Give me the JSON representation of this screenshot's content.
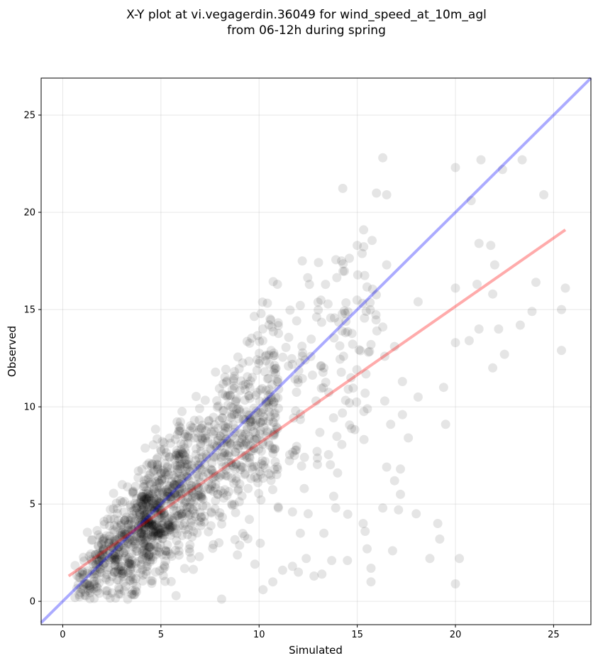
{
  "chart_data": {
    "type": "scatter",
    "title_line1": "X-Y plot at vi.vegagerdin.36049 for wind_speed_at_10m_agl",
    "title_line2": "from 06-12h during spring",
    "xlabel": "Simulated",
    "ylabel": "Observed",
    "xlim": [
      -1.1,
      26.9
    ],
    "ylim": [
      -1.2,
      26.9
    ],
    "xticks": [
      "0",
      "5",
      "10",
      "15",
      "20",
      "25"
    ],
    "yticks": [
      "0",
      "5",
      "10",
      "15",
      "20",
      "25"
    ],
    "grid": true,
    "point_color": "#000000",
    "point_alpha": 0.1,
    "identity_line": {
      "color": "#0000ff",
      "alpha": 0.33,
      "slope": 1,
      "intercept": 0
    },
    "regression_line": {
      "color": "#ff0000",
      "alpha": 0.33,
      "x": [
        0.3,
        25.6
      ],
      "y": [
        1.3,
        19.1
      ]
    },
    "cluster_point_count": 1500,
    "outlier_points": [
      [
        16.3,
        22.8
      ],
      [
        16.5,
        20.9
      ],
      [
        20.0,
        22.3
      ],
      [
        20.8,
        20.6
      ],
      [
        21.3,
        22.7
      ],
      [
        22.4,
        22.2
      ],
      [
        23.4,
        22.7
      ],
      [
        24.5,
        20.9
      ],
      [
        21.2,
        18.4
      ],
      [
        21.8,
        18.3
      ],
      [
        22.0,
        17.3
      ],
      [
        21.9,
        15.8
      ],
      [
        20.0,
        16.1
      ],
      [
        21.1,
        16.3
      ],
      [
        24.1,
        16.4
      ],
      [
        25.6,
        16.1
      ],
      [
        23.9,
        14.9
      ],
      [
        25.4,
        15.0
      ],
      [
        23.3,
        14.2
      ],
      [
        22.2,
        14.0
      ],
      [
        21.2,
        14.0
      ],
      [
        20.7,
        13.4
      ],
      [
        20.0,
        13.3
      ],
      [
        22.5,
        12.7
      ],
      [
        21.9,
        12.0
      ],
      [
        25.4,
        12.9
      ],
      [
        19.4,
        11.0
      ],
      [
        19.5,
        9.1
      ],
      [
        18.1,
        10.5
      ],
      [
        18.0,
        4.5
      ],
      [
        19.1,
        4.0
      ],
      [
        19.2,
        3.2
      ],
      [
        18.7,
        2.2
      ],
      [
        20.2,
        2.2
      ],
      [
        20.0,
        0.9
      ],
      [
        16.8,
        2.6
      ],
      [
        15.7,
        1.7
      ],
      [
        15.7,
        1.0
      ],
      [
        15.5,
        2.7
      ],
      [
        15.4,
        3.6
      ],
      [
        15.3,
        4.0
      ],
      [
        16.3,
        4.8
      ],
      [
        17.1,
        4.7
      ],
      [
        17.2,
        5.5
      ],
      [
        17.2,
        6.8
      ],
      [
        16.9,
        6.2
      ],
      [
        16.5,
        6.9
      ],
      [
        17.3,
        9.6
      ],
      [
        17.6,
        8.4
      ],
      [
        18.1,
        15.4
      ],
      [
        16.5,
        17.3
      ],
      [
        15.0,
        18.3
      ],
      [
        14.2,
        17.5
      ],
      [
        12.2,
        17.5
      ],
      [
        16.0,
        13.9
      ],
      [
        16.3,
        14.1
      ],
      [
        15.7,
        13.2
      ],
      [
        16.9,
        13.1
      ],
      [
        16.4,
        12.6
      ],
      [
        15.4,
        10.7
      ],
      [
        14.6,
        10.2
      ],
      [
        14.3,
        12.6
      ],
      [
        16.7,
        9.1
      ],
      [
        17.3,
        11.3
      ],
      [
        16.4,
        10.3
      ],
      [
        13.3,
        12.0
      ],
      [
        12.9,
        10.3
      ],
      [
        14.0,
        6.6
      ],
      [
        13.8,
        5.4
      ],
      [
        14.5,
        2.1
      ],
      [
        13.3,
        3.5
      ],
      [
        12.3,
        5.8
      ],
      [
        12.5,
        4.5
      ],
      [
        13.9,
        4.8
      ],
      [
        13.2,
        1.4
      ],
      [
        12.4,
        2.2
      ],
      [
        11.7,
        1.8
      ],
      [
        11.2,
        1.6
      ],
      [
        10.7,
        1.0
      ],
      [
        10.2,
        0.6
      ],
      [
        12.0,
        1.5
      ],
      [
        12.8,
        1.3
      ],
      [
        13.7,
        2.1
      ],
      [
        12.1,
        3.5
      ],
      [
        11.7,
        4.6
      ]
    ]
  }
}
